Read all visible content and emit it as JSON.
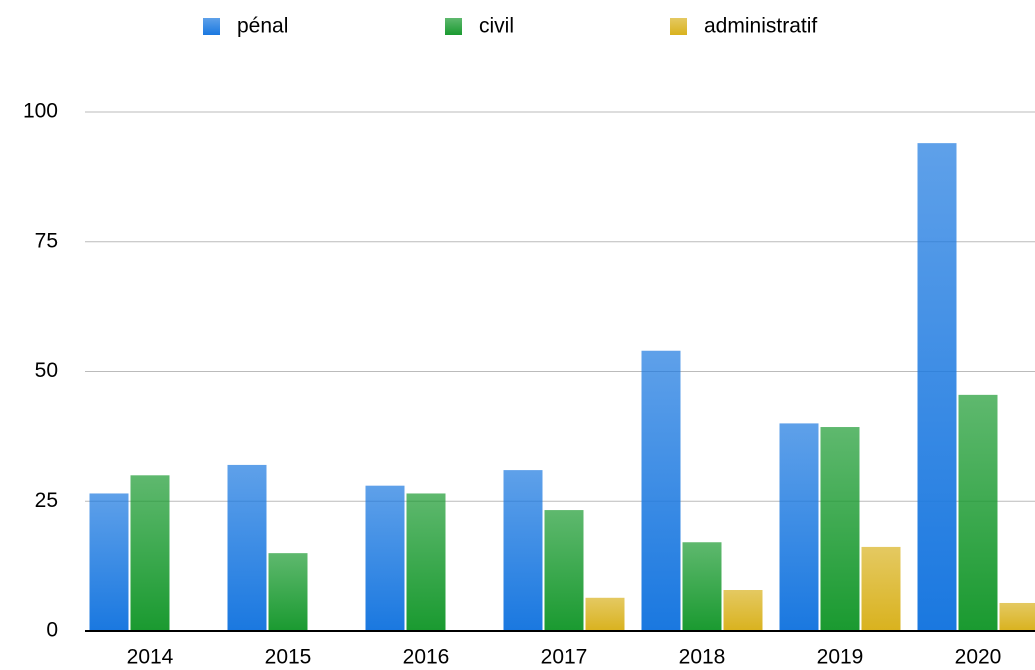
{
  "chart_data": {
    "type": "bar",
    "categories": [
      "2014",
      "2015",
      "2016",
      "2017",
      "2018",
      "2019",
      "2020"
    ],
    "series": [
      {
        "name": "pénal",
        "color": "#1a78e0",
        "values": [
          26.5,
          32,
          28,
          31,
          54,
          40,
          94
        ]
      },
      {
        "name": "civil",
        "color": "#1a9a30",
        "values": [
          30,
          15,
          26.5,
          23.3,
          17.1,
          39.3,
          45.5
        ]
      },
      {
        "name": "administratif",
        "color": "#d9b21e",
        "values": [
          0,
          0,
          0,
          6.4,
          7.9,
          16.2,
          5.4
        ]
      }
    ],
    "ylim": [
      0,
      100
    ],
    "yticks": [
      0,
      25,
      50,
      75,
      100
    ],
    "grid": true,
    "legend": "top"
  }
}
